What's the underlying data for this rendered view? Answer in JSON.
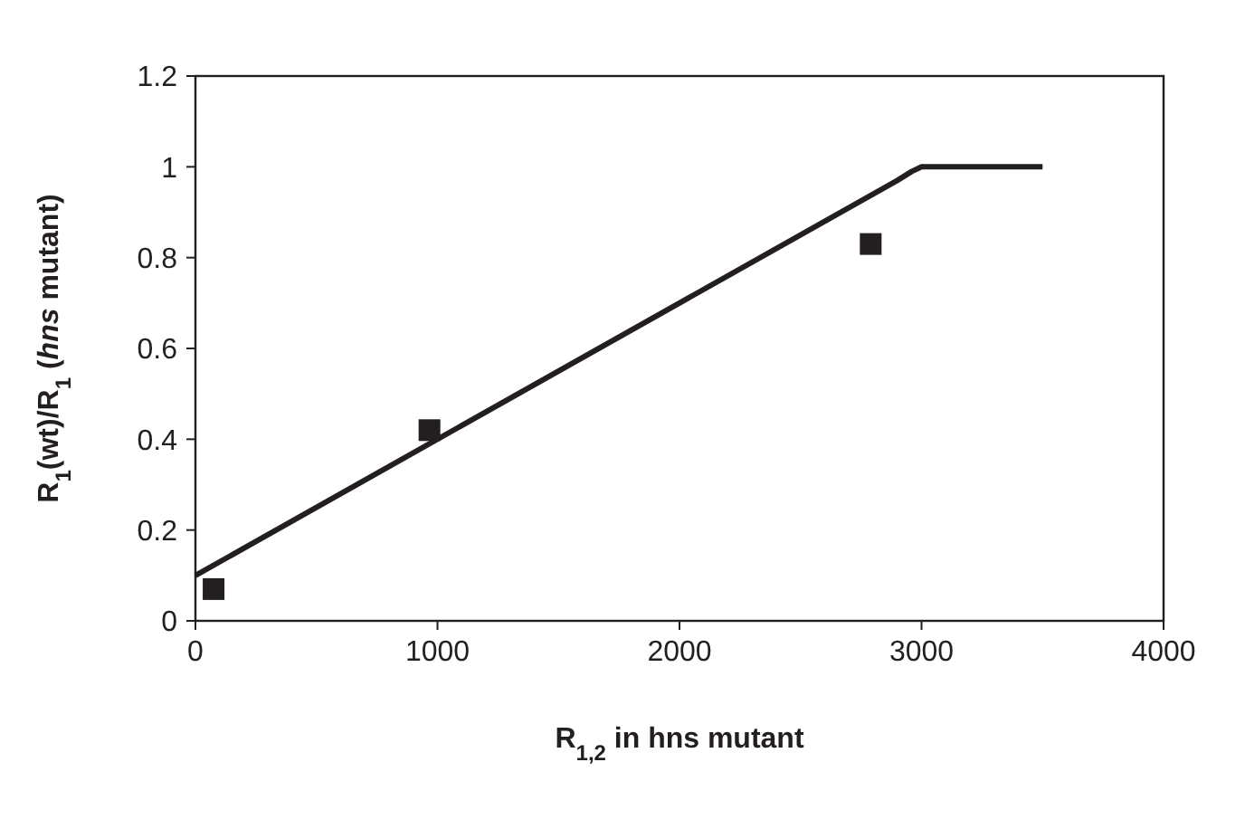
{
  "chart_data": {
    "type": "scatter",
    "xlabel": "R$_{1,2}$ in hns mutant",
    "ylabel": "R$_{1}$(wt)/R$_{1}$ (*hns* mutant)",
    "xlim": [
      0,
      4000
    ],
    "ylim": [
      0,
      1.2
    ],
    "xticks": [
      0,
      1000,
      2000,
      3000,
      4000
    ],
    "yticks": [
      0,
      0.2,
      0.4,
      0.6,
      0.8,
      1,
      1.2
    ],
    "grid": false,
    "series": [
      {
        "type": "line",
        "color": "#231f20",
        "line_style": "solid",
        "x": [
          0,
          2900,
          2960,
          3000,
          3500
        ],
        "values": [
          0.1,
          0.97,
          0.99,
          1,
          1
        ]
      },
      {
        "color": "#231f20",
        "marker": "square",
        "x": [
          75,
          967,
          2790
        ],
        "values": [
          0.07,
          0.42,
          0.83
        ]
      }
    ]
  }
}
